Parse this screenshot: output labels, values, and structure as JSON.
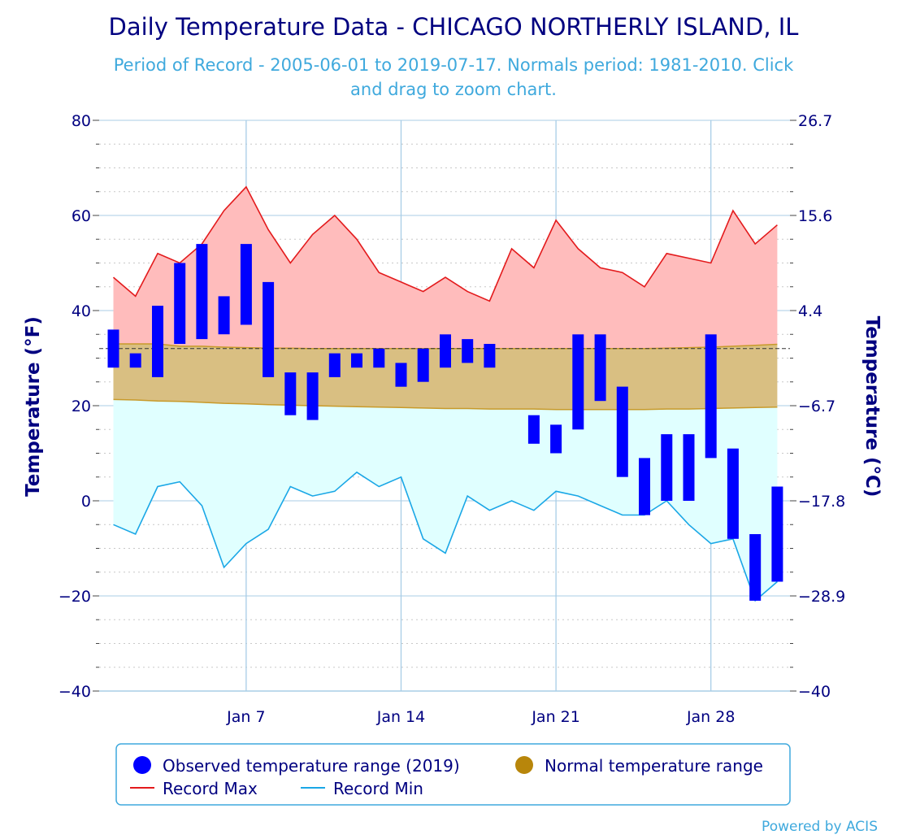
{
  "chart_data": {
    "type": "bar",
    "title": "Daily Temperature Data - CHICAGO NORTHERLY ISLAND, IL",
    "subtitle_line1": "Period of Record - 2005-06-01 to 2019-07-17. Normals period: 1981-2010. Click",
    "subtitle_line2": "and drag to zoom chart.",
    "ylabel_left": "Temperature (°F)",
    "ylabel_right": "Temperature (°C)",
    "ylim": [
      -40,
      80
    ],
    "y_ticks_f": [
      80,
      60,
      40,
      20,
      0,
      -20,
      -40
    ],
    "y_tick_labels_f": [
      "80",
      "60",
      "40",
      "20",
      "0",
      "−20",
      "−40"
    ],
    "y_tick_labels_c": [
      "26.7",
      "15.6",
      "4.4",
      "−6.7",
      "−17.8",
      "−28.9",
      "−40"
    ],
    "x_day_range": [
      1,
      31
    ],
    "x_tick_days": [
      7,
      14,
      21,
      28
    ],
    "x_tick_labels": [
      "Jan 7",
      "Jan 14",
      "Jan 21",
      "Jan 28"
    ],
    "days": [
      1,
      2,
      3,
      4,
      5,
      6,
      7,
      8,
      9,
      10,
      11,
      12,
      13,
      14,
      15,
      16,
      17,
      18,
      19,
      20,
      21,
      22,
      23,
      24,
      25,
      26,
      27,
      28,
      29,
      30,
      31
    ],
    "record_max": [
      47,
      43,
      52,
      50,
      54,
      61,
      66,
      57,
      50,
      56,
      60,
      55,
      48,
      46,
      44,
      47,
      44,
      42,
      53,
      49,
      59,
      53,
      49,
      48,
      45,
      52,
      51,
      50,
      61,
      54,
      58
    ],
    "record_min": [
      -5,
      -7,
      3,
      4,
      -1,
      -14,
      -9,
      -6,
      3,
      1,
      2,
      6,
      3,
      5,
      -8,
      -11,
      1,
      -2,
      0,
      -2,
      2,
      1,
      -1,
      -3,
      -3,
      0,
      -5,
      -9,
      -8,
      -21,
      -17
    ],
    "normal_max": [
      33,
      33,
      33,
      32.5,
      32.5,
      32.3,
      32.2,
      32.1,
      32.1,
      32,
      32,
      32,
      32,
      32,
      32,
      32,
      32,
      32,
      32,
      32,
      32,
      32,
      32,
      32,
      32,
      32.1,
      32.2,
      32.3,
      32.5,
      32.7,
      32.9
    ],
    "normal_min": [
      21.3,
      21.2,
      21,
      20.9,
      20.7,
      20.5,
      20.4,
      20.2,
      20.1,
      20,
      19.9,
      19.8,
      19.7,
      19.6,
      19.5,
      19.4,
      19.4,
      19.3,
      19.3,
      19.3,
      19.2,
      19.2,
      19.2,
      19.2,
      19.2,
      19.3,
      19.3,
      19.4,
      19.5,
      19.6,
      19.7
    ],
    "mean_normal_line": 32,
    "series": [
      {
        "name": "Observed temperature range (2019)",
        "high": [
          36,
          31,
          41,
          50,
          54,
          43,
          54,
          46,
          27,
          27,
          31,
          31,
          32,
          29,
          32,
          35,
          34,
          33,
          null,
          18,
          16,
          35,
          35,
          24,
          9,
          14,
          14,
          35,
          11,
          -7,
          3
        ],
        "low": [
          28,
          28,
          26,
          33,
          34,
          35,
          37,
          26,
          18,
          17,
          26,
          28,
          28,
          24,
          25,
          28,
          29,
          28,
          null,
          12,
          10,
          15,
          21,
          5,
          -3,
          0,
          0,
          9,
          -8,
          -21,
          -17
        ]
      }
    ],
    "legend": {
      "placement": "bottom",
      "items": [
        {
          "label": "Observed temperature range (2019)",
          "symbol": "circle",
          "color": "#0000ff"
        },
        {
          "label": "Normal temperature range",
          "symbol": "circle",
          "color": "#b8860b"
        },
        {
          "label": "Record Max",
          "symbol": "line",
          "color": "#e31a1c"
        },
        {
          "label": "Record Min",
          "symbol": "line",
          "color": "#1aa7e6"
        }
      ]
    },
    "colors": {
      "observed": "#0000ff",
      "record_max_line": "#e31a1c",
      "record_max_fill": "#ffbcbc",
      "normal_fill": "#d9bf82",
      "normal_line": "#c89a2a",
      "record_min_line": "#1aa7e6",
      "record_min_fill": "#e0ffff",
      "grid": "#a8cde6",
      "title": "#000080",
      "subtitle": "#3fa9dd"
    },
    "grid": true,
    "credit": "Powered by ACIS"
  }
}
